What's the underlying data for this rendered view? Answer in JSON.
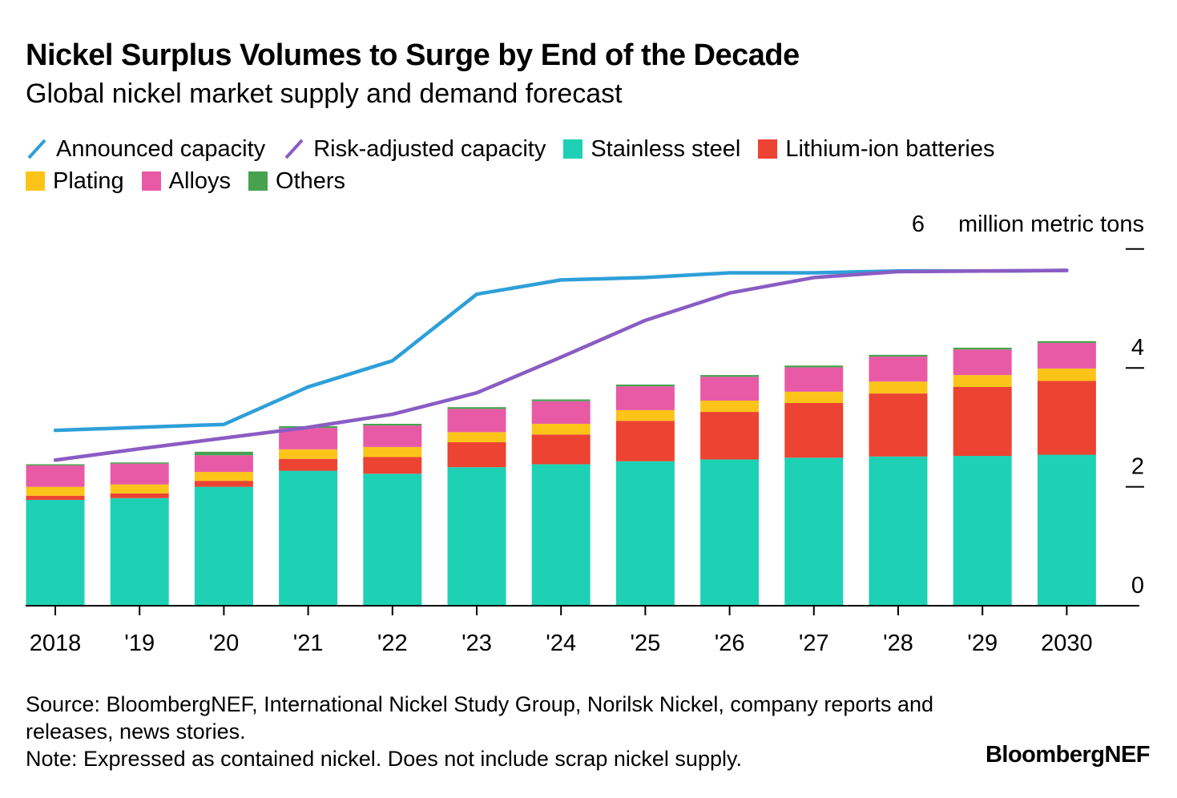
{
  "title": "Nickel Surplus Volumes to Surge by End of the Decade",
  "subtitle": "Global nickel market supply and demand forecast",
  "legend": {
    "row1": [
      {
        "label": "Announced capacity",
        "kind": "line",
        "color": "#2e9fd8"
      },
      {
        "label": "Risk-adjusted capacity",
        "kind": "line",
        "color": "#8a5cc4"
      },
      {
        "label": "Stainless steel",
        "kind": "box",
        "color": "#1ed1b4"
      },
      {
        "label": "Lithium-ion batteries",
        "kind": "box",
        "color": "#ec4332"
      }
    ],
    "row2": [
      {
        "label": "Plating",
        "kind": "box",
        "color": "#fcc419"
      },
      {
        "label": "Alloys",
        "kind": "box",
        "color": "#e85aa6"
      },
      {
        "label": "Others",
        "kind": "box",
        "color": "#46a24f"
      }
    ]
  },
  "chart_data": {
    "type": "bar",
    "stacked": true,
    "categories": [
      "2018",
      "'19",
      "'20",
      "'21",
      "'22",
      "'23",
      "'24",
      "'25",
      "'26",
      "'27",
      "'28",
      "'29",
      "2030"
    ],
    "ylim": [
      0,
      6
    ],
    "yticks": [
      0,
      2,
      4,
      6
    ],
    "ytick_labels": [
      "0",
      "2",
      "4",
      "6"
    ],
    "yunit": "million metric tons",
    "series": [
      {
        "name": "Stainless steel",
        "color": "#1ed1b4",
        "values": [
          1.78,
          1.81,
          2.0,
          2.27,
          2.22,
          2.33,
          2.38,
          2.43,
          2.46,
          2.49,
          2.51,
          2.52,
          2.54
        ]
      },
      {
        "name": "Lithium-ion batteries",
        "color": "#ec4332",
        "values": [
          0.07,
          0.08,
          0.1,
          0.2,
          0.28,
          0.42,
          0.5,
          0.68,
          0.8,
          0.92,
          1.06,
          1.16,
          1.24
        ]
      },
      {
        "name": "Plating",
        "color": "#fcc419",
        "values": [
          0.15,
          0.15,
          0.15,
          0.16,
          0.17,
          0.17,
          0.18,
          0.18,
          0.19,
          0.19,
          0.2,
          0.2,
          0.21
        ]
      },
      {
        "name": "Alloys",
        "color": "#e85aa6",
        "values": [
          0.36,
          0.35,
          0.28,
          0.36,
          0.36,
          0.39,
          0.38,
          0.4,
          0.4,
          0.41,
          0.42,
          0.43,
          0.43
        ]
      },
      {
        "name": "Others",
        "color": "#46a24f",
        "values": [
          0.02,
          0.02,
          0.06,
          0.03,
          0.03,
          0.03,
          0.03,
          0.03,
          0.03,
          0.03,
          0.03,
          0.03,
          0.03
        ]
      }
    ],
    "lines": [
      {
        "name": "Announced capacity",
        "color": "#2e9fd8",
        "values": [
          2.95,
          3.0,
          3.05,
          3.68,
          4.12,
          5.24,
          5.48,
          5.52,
          5.6,
          5.6,
          5.63,
          5.63,
          5.64
        ]
      },
      {
        "name": "Risk-adjusted capacity",
        "color": "#8a5cc4",
        "values": [
          2.45,
          2.64,
          2.82,
          3.0,
          3.22,
          3.58,
          4.18,
          4.8,
          5.26,
          5.52,
          5.62,
          5.63,
          5.64
        ]
      }
    ]
  },
  "footer": {
    "source": "Source: BloombergNEF, International Nickel Study Group, Norilsk Nickel, company reports and releases, news stories.",
    "note": "Note: Expressed as contained nickel. Does not include scrap nickel supply."
  },
  "brand": "BloombergNEF"
}
